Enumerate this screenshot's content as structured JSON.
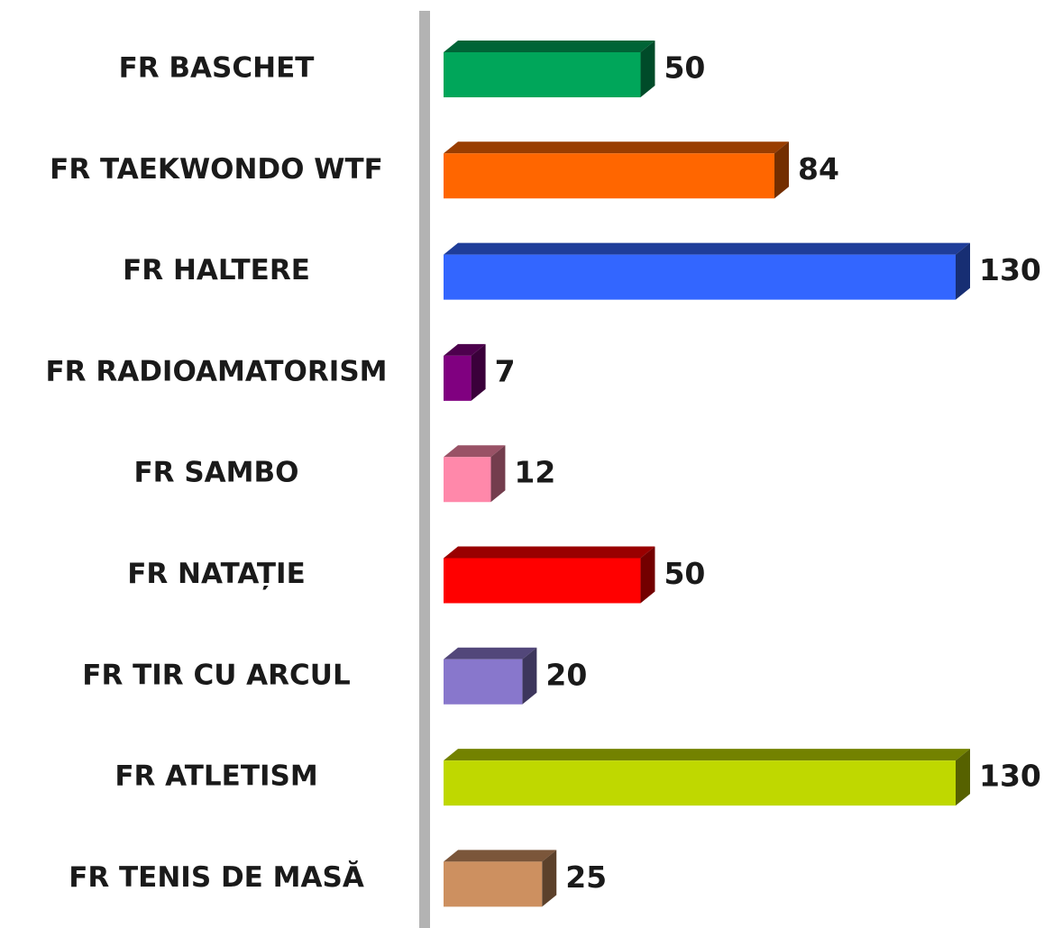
{
  "chart_data": {
    "type": "bar",
    "categories": [
      "FR BASCHET",
      "FR TAEKWONDO WTF",
      "FR HALTERE",
      "FR RADIOAMATORISM",
      "FR SAMBO",
      "FR NATAȚIE",
      "FR TIR CU ARCUL",
      "FR ATLETISM",
      "FR TENIS DE MASĂ"
    ],
    "values": [
      50,
      84,
      130,
      7,
      12,
      50,
      20,
      130,
      25
    ],
    "colors": [
      "#00a65a",
      "#ff6600",
      "#3366ff",
      "#800080",
      "#ff88aa",
      "#ff0000",
      "#8877cc",
      "#bfd800",
      "#cd9060"
    ]
  }
}
